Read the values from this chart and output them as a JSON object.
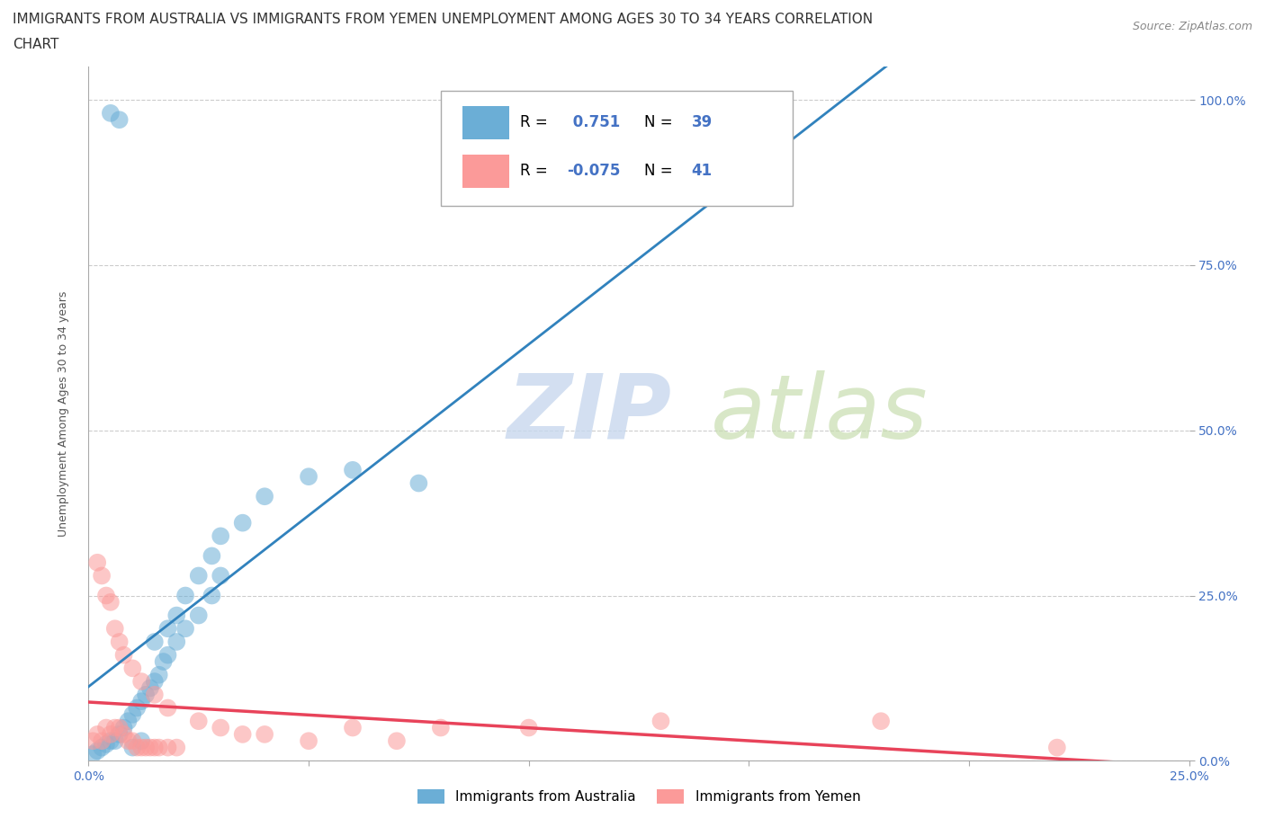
{
  "title_line1": "IMMIGRANTS FROM AUSTRALIA VS IMMIGRANTS FROM YEMEN UNEMPLOYMENT AMONG AGES 30 TO 34 YEARS CORRELATION",
  "title_line2": "CHART",
  "source_text": "Source: ZipAtlas.com",
  "ylabel": "Unemployment Among Ages 30 to 34 years",
  "xlim": [
    0.0,
    0.25
  ],
  "ylim": [
    0.0,
    1.05
  ],
  "australia_color": "#6baed6",
  "australia_line_color": "#3182bd",
  "yemen_color": "#fb9a99",
  "yemen_line_color": "#e8435a",
  "australia_R": 0.751,
  "australia_N": 39,
  "yemen_R": -0.075,
  "yemen_N": 41,
  "watermark_zip": "ZIP",
  "watermark_atlas": "atlas",
  "legend_label_australia": "Immigrants from Australia",
  "legend_label_yemen": "Immigrants from Yemen",
  "australia_x": [
    0.001,
    0.002,
    0.003,
    0.004,
    0.005,
    0.006,
    0.007,
    0.008,
    0.009,
    0.01,
    0.011,
    0.012,
    0.013,
    0.014,
    0.015,
    0.016,
    0.017,
    0.018,
    0.02,
    0.022,
    0.025,
    0.028,
    0.03,
    0.015,
    0.018,
    0.02,
    0.022,
    0.025,
    0.028,
    0.03,
    0.035,
    0.04,
    0.05,
    0.06,
    0.075,
    0.005,
    0.007,
    0.01,
    0.012
  ],
  "australia_y": [
    0.01,
    0.015,
    0.02,
    0.025,
    0.03,
    0.03,
    0.04,
    0.05,
    0.06,
    0.07,
    0.08,
    0.09,
    0.1,
    0.11,
    0.12,
    0.13,
    0.15,
    0.16,
    0.18,
    0.2,
    0.22,
    0.25,
    0.28,
    0.18,
    0.2,
    0.22,
    0.25,
    0.28,
    0.31,
    0.34,
    0.36,
    0.4,
    0.43,
    0.44,
    0.42,
    0.98,
    0.97,
    0.02,
    0.03
  ],
  "yemen_x": [
    0.001,
    0.002,
    0.003,
    0.004,
    0.005,
    0.006,
    0.007,
    0.008,
    0.009,
    0.01,
    0.011,
    0.012,
    0.013,
    0.014,
    0.015,
    0.016,
    0.018,
    0.02,
    0.002,
    0.003,
    0.004,
    0.005,
    0.006,
    0.007,
    0.008,
    0.01,
    0.012,
    0.015,
    0.018,
    0.025,
    0.03,
    0.035,
    0.04,
    0.05,
    0.06,
    0.07,
    0.08,
    0.1,
    0.13,
    0.18,
    0.22
  ],
  "yemen_y": [
    0.03,
    0.04,
    0.03,
    0.05,
    0.04,
    0.05,
    0.05,
    0.04,
    0.03,
    0.03,
    0.02,
    0.02,
    0.02,
    0.02,
    0.02,
    0.02,
    0.02,
    0.02,
    0.3,
    0.28,
    0.25,
    0.24,
    0.2,
    0.18,
    0.16,
    0.14,
    0.12,
    0.1,
    0.08,
    0.06,
    0.05,
    0.04,
    0.04,
    0.03,
    0.05,
    0.03,
    0.05,
    0.05,
    0.06,
    0.06,
    0.02
  ],
  "background_color": "#ffffff",
  "grid_color": "#cccccc",
  "title_fontsize": 11,
  "axis_label_fontsize": 9,
  "tick_fontsize": 10
}
